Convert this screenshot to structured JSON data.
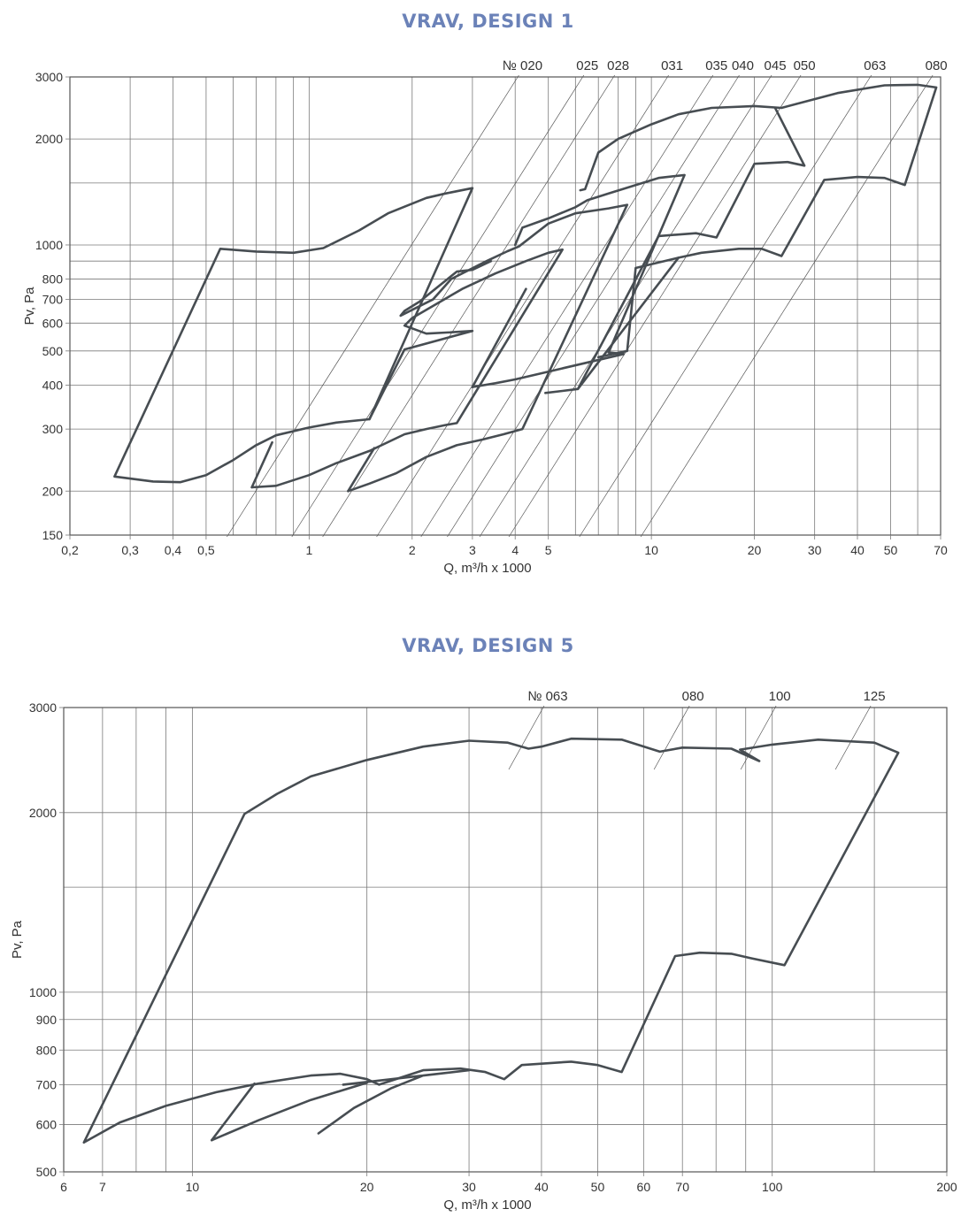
{
  "chart_data": [
    {
      "type": "line",
      "title": "VRAV, DESIGN 1",
      "xlabel": "Q, m³/h x 1000",
      "ylabel": "Pv, Pa",
      "x_scale": "log",
      "y_scale": "log",
      "xlim": [
        0.2,
        70
      ],
      "ylim": [
        150,
        3000
      ],
      "x_ticks": [
        0.2,
        0.3,
        0.4,
        0.5,
        1,
        2,
        3,
        4,
        5,
        10,
        20,
        30,
        40,
        50,
        70
      ],
      "x_tick_labels": [
        "0,2",
        "0,3",
        "0,4",
        "0,5",
        "1",
        "2",
        "3",
        "4",
        "5",
        "10",
        "20",
        "30",
        "40",
        "50",
        "70"
      ],
      "y_ticks": [
        150,
        200,
        300,
        400,
        500,
        600,
        700,
        800,
        1000,
        2000,
        3000
      ],
      "y_tick_labels": [
        "150",
        "200",
        "300",
        "400",
        "500",
        "600",
        "700",
        "800",
        "1000",
        "2000",
        "3000"
      ],
      "x_grid": [
        0.3,
        0.4,
        0.5,
        0.6,
        0.7,
        0.8,
        0.9,
        1,
        2,
        3,
        4,
        5,
        6,
        7,
        8,
        9,
        10,
        20,
        30,
        40,
        50,
        60,
        70
      ],
      "y_grid": [
        150,
        200,
        300,
        400,
        500,
        600,
        700,
        800,
        900,
        1000,
        1500,
        2000,
        3000
      ],
      "grid": true,
      "series": [
        {
          "name": "№ 020",
          "label_x": 4.2,
          "values": [
            [
              0.27,
              220
            ],
            [
              0.35,
              213
            ],
            [
              0.42,
              212
            ],
            [
              0.5,
              222
            ],
            [
              0.6,
              245
            ],
            [
              0.7,
              270
            ],
            [
              0.8,
              288
            ],
            [
              1.0,
              303
            ],
            [
              1.2,
              313
            ],
            [
              1.5,
              320
            ],
            [
              3.0,
              1450
            ],
            [
              2.5,
              1400
            ],
            [
              2.2,
              1360
            ],
            [
              1.7,
              1230
            ],
            [
              1.4,
              1100
            ],
            [
              1.1,
              980
            ],
            [
              0.9,
              950
            ],
            [
              0.7,
              958
            ],
            [
              0.55,
              975
            ],
            [
              0.27,
              220
            ]
          ]
        },
        {
          "name": "025",
          "label_x": 6.5,
          "values": [
            [
              0.68,
              205
            ],
            [
              0.8,
              207
            ],
            [
              1.0,
              222
            ],
            [
              1.2,
              240
            ],
            [
              1.5,
              260
            ],
            [
              1.9,
              290
            ],
            [
              2.2,
              300
            ],
            [
              2.5,
              308
            ],
            [
              2.7,
              312
            ],
            [
              5.5,
              970
            ],
            [
              5.0,
              950
            ],
            [
              4.3,
              900
            ],
            [
              3.5,
              830
            ],
            [
              2.8,
              750
            ],
            [
              2.0,
              620
            ],
            [
              1.9,
              590
            ],
            [
              2.2,
              560
            ],
            [
              2.6,
              565
            ],
            [
              3.0,
              570
            ],
            [
              1.9,
              505
            ],
            [
              1.5,
              320
            ]
          ]
        },
        {
          "name": "028",
          "label_x": 8.0,
          "values": [
            [
              0.68,
              205
            ],
            [
              0.78,
              275
            ]
          ]
        },
        {
          "name": "031",
          "label_x": 11.5,
          "values": [
            [
              1.3,
              200
            ],
            [
              1.5,
              210
            ],
            [
              1.8,
              225
            ],
            [
              2.2,
              250
            ],
            [
              2.7,
              270
            ],
            [
              3.2,
              280
            ],
            [
              3.7,
              290
            ],
            [
              4.2,
              300
            ],
            [
              8.5,
              1300
            ],
            [
              7.5,
              1270
            ],
            [
              6.0,
              1230
            ],
            [
              5.0,
              1150
            ],
            [
              4.1,
              990
            ],
            [
              3.8,
              960
            ],
            [
              3.3,
              900
            ],
            [
              2.6,
              800
            ],
            [
              2.3,
              700
            ],
            [
              1.85,
              630
            ],
            [
              1.9,
              650
            ],
            [
              2.1,
              690
            ],
            [
              2.7,
              840
            ],
            [
              3.0,
              850
            ],
            [
              3.4,
              900
            ]
          ]
        },
        {
          "name": "035",
          "label_x": 15.5,
          "values": [
            [
              1.3,
              200
            ],
            [
              1.55,
              265
            ]
          ]
        },
        {
          "name": "040",
          "label_x": 18.5,
          "values": [
            [
              3.0,
              395
            ],
            [
              3.5,
              405
            ],
            [
              4.0,
              415
            ],
            [
              8.3,
              490
            ],
            [
              7.5,
              495
            ],
            [
              12.5,
              1580
            ],
            [
              10.5,
              1550
            ],
            [
              9.0,
              1480
            ],
            [
              7.5,
              1400
            ],
            [
              6.5,
              1340
            ],
            [
              6.0,
              1280
            ],
            [
              5.0,
              1190
            ],
            [
              4.2,
              1120
            ],
            [
              4.0,
              1000
            ]
          ]
        },
        {
          "name": "045",
          "label_x": 23.0,
          "values": [
            [
              3.0,
              395
            ],
            [
              4.3,
              750
            ]
          ]
        },
        {
          "name": "050",
          "label_x": 28.0,
          "values": [
            [
              4.9,
              380
            ],
            [
              5.5,
              385
            ],
            [
              6.1,
              390
            ],
            [
              12.0,
              920
            ],
            [
              14.0,
              950
            ],
            [
              18.0,
              975
            ],
            [
              21.0,
              975
            ],
            [
              24.0,
              930
            ],
            [
              32.0,
              1530
            ],
            [
              40.0,
              1560
            ],
            [
              48.0,
              1550
            ],
            [
              55.0,
              1480
            ],
            [
              68.0,
              2800
            ],
            [
              60.0,
              2850
            ],
            [
              48.0,
              2840
            ],
            [
              35.0,
              2700
            ],
            [
              28.0,
              2550
            ],
            [
              24.0,
              2450
            ],
            [
              20.0,
              2480
            ],
            [
              15.0,
              2450
            ],
            [
              12.0,
              2350
            ],
            [
              10.0,
              2200
            ],
            [
              8.0,
              2000
            ],
            [
              7.0,
              1830
            ],
            [
              6.4,
              1440
            ],
            [
              6.4,
              1440
            ],
            [
              6.2,
              1430
            ]
          ]
        },
        {
          "name": "063",
          "label_x": 45.0,
          "values": [
            [
              6.1,
              390
            ],
            [
              10.5,
              1060
            ],
            [
              13.5,
              1080
            ],
            [
              15.5,
              1050
            ],
            [
              20.0,
              1700
            ],
            [
              25.0,
              1720
            ],
            [
              28.0,
              1680
            ],
            [
              23.0,
              2450
            ]
          ]
        },
        {
          "name": "080",
          "label_x": 68.0,
          "values": [
            [
              7.0,
              480
            ],
            [
              8.5,
              500
            ],
            [
              9.0,
              860
            ],
            [
              12.0,
              920
            ]
          ]
        }
      ]
    },
    {
      "type": "line",
      "title": "VRAV, DESIGN 5",
      "xlabel": "Q, m³/h x 1000",
      "ylabel": "Pv, Pa",
      "x_scale": "log",
      "y_scale": "log",
      "xlim": [
        6,
        200
      ],
      "ylim": [
        500,
        3000
      ],
      "x_ticks": [
        6,
        7,
        10,
        20,
        30,
        40,
        50,
        60,
        70,
        100,
        200
      ],
      "x_tick_labels": [
        "6",
        "7",
        "10",
        "20",
        "30",
        "40",
        "50",
        "60",
        "70",
        "100",
        "200"
      ],
      "y_ticks": [
        500,
        600,
        700,
        800,
        900,
        1000,
        2000,
        3000
      ],
      "y_tick_labels": [
        "500",
        "600",
        "700",
        "800",
        "900",
        "1000",
        "2000",
        "3000"
      ],
      "x_grid": [
        7,
        8,
        9,
        10,
        20,
        30,
        40,
        50,
        60,
        70,
        80,
        90,
        100,
        150,
        200
      ],
      "y_grid": [
        500,
        600,
        700,
        800,
        900,
        1000,
        1500,
        2000,
        3000
      ],
      "grid": true,
      "series": [
        {
          "name": "№ 063",
          "label_x": 41.0,
          "values": [
            [
              6.5,
              560
            ],
            [
              7.5,
              605
            ],
            [
              9.0,
              645
            ],
            [
              11.0,
              680
            ],
            [
              13.0,
              703
            ],
            [
              16.0,
              725
            ],
            [
              18.0,
              730
            ],
            [
              20.0,
              715
            ],
            [
              21.0,
              700
            ],
            [
              25.0,
              740
            ],
            [
              29.0,
              745
            ],
            [
              32.0,
              735
            ],
            [
              34.5,
              715
            ],
            [
              37.0,
              755
            ],
            [
              45.0,
              765
            ],
            [
              50.0,
              755
            ],
            [
              55.0,
              735
            ],
            [
              68.0,
              1150
            ],
            [
              75.0,
              1165
            ],
            [
              85.0,
              1160
            ],
            [
              92.0,
              1140
            ],
            [
              105.0,
              1110
            ],
            [
              165.0,
              2520
            ],
            [
              150.0,
              2620
            ],
            [
              120.0,
              2650
            ],
            [
              100.0,
              2600
            ],
            [
              88.0,
              2550
            ],
            [
              95.0,
              2440
            ],
            [
              85.0,
              2560
            ],
            [
              70.0,
              2570
            ],
            [
              64.0,
              2530
            ],
            [
              55.0,
              2650
            ],
            [
              45.0,
              2660
            ],
            [
              40.0,
              2580
            ],
            [
              38.0,
              2560
            ],
            [
              35.0,
              2620
            ],
            [
              30.0,
              2640
            ],
            [
              25.0,
              2580
            ],
            [
              20.0,
              2450
            ],
            [
              16.0,
              2300
            ],
            [
              14.0,
              2150
            ],
            [
              12.3,
              1990
            ],
            [
              6.5,
              560
            ]
          ]
        },
        {
          "name": "080",
          "label_x": 73.0,
          "values": [
            [
              10.8,
              565
            ],
            [
              12.8,
              703
            ]
          ]
        },
        {
          "name": "100",
          "label_x": 103.0,
          "values": [
            [
              16.5,
              580
            ],
            [
              19.0,
              640
            ],
            [
              22.0,
              690
            ],
            [
              25.0,
              725
            ],
            [
              30.0,
              740
            ],
            [
              18.2,
              700
            ]
          ]
        },
        {
          "name": "125",
          "label_x": 150.0,
          "values": [
            [
              10.8,
              565
            ],
            [
              13.0,
              610
            ],
            [
              16.0,
              660
            ],
            [
              20.0,
              705
            ]
          ]
        }
      ]
    }
  ]
}
